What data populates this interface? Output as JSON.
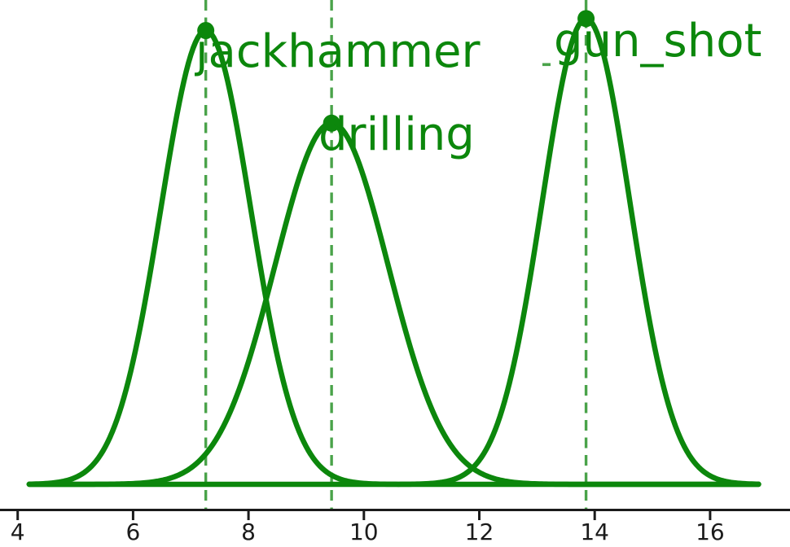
{
  "chart_data": {
    "type": "line",
    "title": "",
    "xlabel": "",
    "ylabel": "",
    "description": "Three green Gaussian (bell) curves with peak markers, dashed vertical lines at each mean, labeled by sound class",
    "series": [
      {
        "name": "jackhammer",
        "mean": 7.26,
        "sigma": 0.78,
        "peak_density": 0.512
      },
      {
        "name": "drilling",
        "mean": 9.44,
        "sigma": 0.98,
        "peak_density": 0.407
      },
      {
        "name": "gun_shot",
        "mean": 13.85,
        "sigma": 0.76,
        "peak_density": 0.525
      }
    ],
    "curve_x_range": [
      4.2,
      16.85
    ],
    "xlim": [
      3.69,
      17.39
    ],
    "x_tick_values": [
      4,
      6,
      8,
      10,
      12,
      14,
      16
    ],
    "x_ticks": [
      "4",
      "6",
      "8",
      "10",
      "12",
      "14",
      "16"
    ],
    "y_axis": "hidden",
    "grid": false,
    "legend": "none",
    "colors": {
      "curve": "#0c870c",
      "marker": "#0c870c",
      "dashed_line": "#4aa34a",
      "label_text": "#0c870c",
      "axis": "#1b1b1b"
    }
  }
}
